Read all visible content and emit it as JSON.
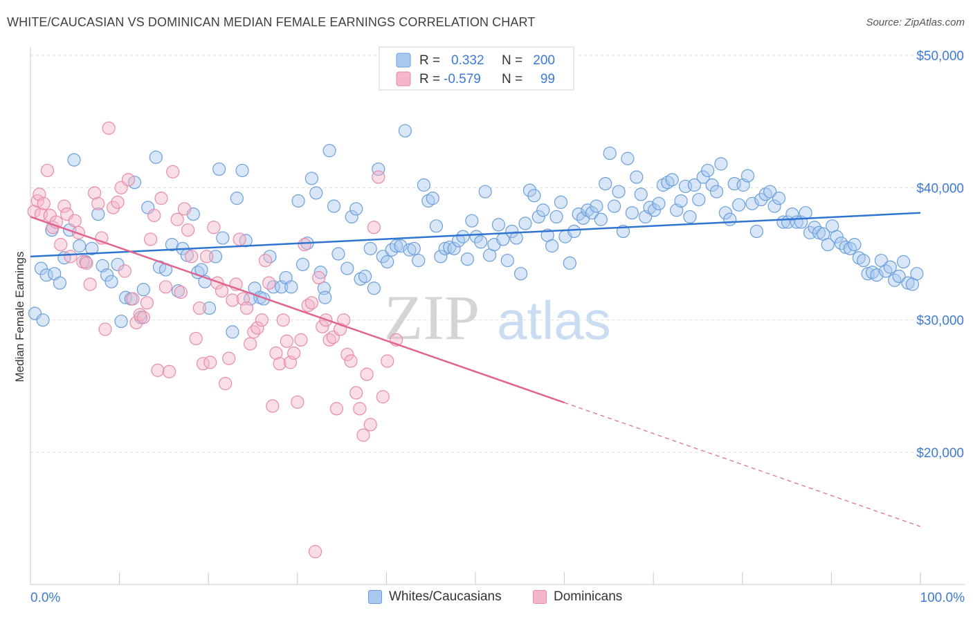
{
  "title": "WHITE/CAUCASIAN VS DOMINICAN MEDIAN FEMALE EARNINGS CORRELATION CHART",
  "source": "Source: ZipAtlas.com",
  "watermark": {
    "zip": "ZIP",
    "atlas": "atlas"
  },
  "colors": {
    "white_fill": "#a9c8ee",
    "white_stroke": "#6a9fdc",
    "white_line": "#2f74d0",
    "dom_fill": "#f4b6c8",
    "dom_stroke": "#e98aa7",
    "dom_line": "#e0648f",
    "axis_text": "#3d7ad6",
    "grid": "#dddddd"
  },
  "legend_top": {
    "rows": [
      {
        "r_label": "R =",
        "r_value": "0.332",
        "n_label": "N =",
        "n_value": "200"
      },
      {
        "r_label": "R =",
        "r_value": "-0.579",
        "n_label": "N =",
        "n_value": "99"
      }
    ]
  },
  "legend_bottom": [
    "Whites/Caucasians",
    "Dominicans"
  ],
  "chart_data": {
    "type": "scatter",
    "title": "WHITE/CAUCASIAN VS DOMINICAN MEDIAN FEMALE EARNINGS CORRELATION CHART",
    "xlabel": "",
    "ylabel": "Median Female Earnings",
    "x_tick_labels": [
      "0.0%",
      "100.0%"
    ],
    "y_tick_labels": [
      "$20,000",
      "$30,000",
      "$40,000",
      "$50,000"
    ],
    "y_ticks": [
      20000,
      30000,
      40000,
      50000
    ],
    "xlim": [
      0,
      100
    ],
    "ylim": [
      10000,
      52000
    ],
    "grid": true,
    "series": [
      {
        "name": "Whites/Caucasians",
        "r": 0.332,
        "n": 200,
        "trend": {
          "x": [
            0,
            100
          ],
          "y": [
            34800,
            38100
          ],
          "dashed_from": null
        },
        "points": [
          [
            0.5,
            30500
          ],
          [
            1.2,
            33900
          ],
          [
            1.4,
            30000
          ],
          [
            1.8,
            33400
          ],
          [
            2.4,
            36800
          ],
          [
            2.7,
            33500
          ],
          [
            3.3,
            32800
          ],
          [
            3.8,
            34700
          ],
          [
            4.4,
            36800
          ],
          [
            4.9,
            42100
          ],
          [
            5.5,
            35600
          ],
          [
            6.2,
            34400
          ],
          [
            6.9,
            35400
          ],
          [
            7.6,
            38000
          ],
          [
            8.1,
            34100
          ],
          [
            8.6,
            33400
          ],
          [
            9.1,
            32900
          ],
          [
            9.8,
            34200
          ],
          [
            10.2,
            29900
          ],
          [
            10.7,
            31700
          ],
          [
            11.3,
            31600
          ],
          [
            11.7,
            40400
          ],
          [
            12.4,
            30200
          ],
          [
            12.7,
            32300
          ],
          [
            13.2,
            38500
          ],
          [
            14.1,
            42300
          ],
          [
            14.5,
            34000
          ],
          [
            15.2,
            33800
          ],
          [
            15.9,
            35700
          ],
          [
            16.6,
            32200
          ],
          [
            17.1,
            35400
          ],
          [
            17.6,
            34900
          ],
          [
            18.3,
            38000
          ],
          [
            18.8,
            33600
          ],
          [
            19.2,
            33800
          ],
          [
            19.6,
            32900
          ],
          [
            20.1,
            30900
          ],
          [
            20.8,
            34800
          ],
          [
            21.2,
            41400
          ],
          [
            21.6,
            36200
          ],
          [
            22.7,
            29100
          ],
          [
            23.2,
            39200
          ],
          [
            23.8,
            41300
          ],
          [
            24.2,
            36000
          ],
          [
            24.7,
            31600
          ],
          [
            25.2,
            32400
          ],
          [
            25.8,
            31700
          ],
          [
            26.2,
            31600
          ],
          [
            26.9,
            34800
          ],
          [
            27.3,
            32500
          ],
          [
            28.2,
            32500
          ],
          [
            28.7,
            33200
          ],
          [
            29.3,
            32500
          ],
          [
            30.1,
            39000
          ],
          [
            30.6,
            34200
          ],
          [
            31.1,
            35800
          ],
          [
            31.6,
            40700
          ],
          [
            32.1,
            39600
          ],
          [
            32.6,
            33600
          ],
          [
            33.0,
            32400
          ],
          [
            33.1,
            31700
          ],
          [
            33.6,
            42800
          ],
          [
            34.1,
            38600
          ],
          [
            34.6,
            35000
          ],
          [
            35.6,
            33900
          ],
          [
            36.1,
            37800
          ],
          [
            36.6,
            38400
          ],
          [
            37.1,
            33100
          ],
          [
            37.6,
            33300
          ],
          [
            38.2,
            35400
          ],
          [
            38.6,
            32400
          ],
          [
            39.1,
            41400
          ],
          [
            39.6,
            34800
          ],
          [
            40.1,
            34400
          ],
          [
            40.6,
            35300
          ],
          [
            41.1,
            35600
          ],
          [
            41.6,
            35600
          ],
          [
            42.1,
            44300
          ],
          [
            42.6,
            35300
          ],
          [
            43.1,
            35400
          ],
          [
            43.6,
            34500
          ],
          [
            44.2,
            40200
          ],
          [
            44.7,
            39000
          ],
          [
            45.2,
            39200
          ],
          [
            45.6,
            37100
          ],
          [
            46.1,
            34800
          ],
          [
            46.6,
            35400
          ],
          [
            47.1,
            35500
          ],
          [
            47.6,
            35400
          ],
          [
            48.1,
            36000
          ],
          [
            48.6,
            36300
          ],
          [
            49.1,
            34600
          ],
          [
            49.6,
            37500
          ],
          [
            50.1,
            36300
          ],
          [
            50.6,
            35900
          ],
          [
            51.1,
            39700
          ],
          [
            51.6,
            34900
          ],
          [
            52.1,
            35700
          ],
          [
            52.6,
            37200
          ],
          [
            53.1,
            36100
          ],
          [
            53.6,
            34500
          ],
          [
            54.1,
            36700
          ],
          [
            54.6,
            36200
          ],
          [
            55.1,
            33500
          ],
          [
            55.6,
            37300
          ],
          [
            56.1,
            39800
          ],
          [
            56.6,
            39400
          ],
          [
            57.1,
            37800
          ],
          [
            57.6,
            38300
          ],
          [
            58.1,
            36400
          ],
          [
            58.6,
            35600
          ],
          [
            59.1,
            37800
          ],
          [
            59.6,
            38900
          ],
          [
            60.1,
            36300
          ],
          [
            60.6,
            34300
          ],
          [
            61.1,
            36700
          ],
          [
            61.6,
            38000
          ],
          [
            62.1,
            37700
          ],
          [
            62.6,
            38300
          ],
          [
            63.1,
            38100
          ],
          [
            63.6,
            38600
          ],
          [
            64.1,
            37600
          ],
          [
            64.6,
            40300
          ],
          [
            65.1,
            42600
          ],
          [
            65.6,
            38600
          ],
          [
            66.1,
            39700
          ],
          [
            66.6,
            36700
          ],
          [
            67.1,
            42200
          ],
          [
            67.6,
            38100
          ],
          [
            68.1,
            40800
          ],
          [
            68.6,
            39500
          ],
          [
            69.1,
            37800
          ],
          [
            69.6,
            38500
          ],
          [
            70.1,
            38300
          ],
          [
            70.6,
            38800
          ],
          [
            71.1,
            40200
          ],
          [
            71.6,
            40400
          ],
          [
            72.1,
            40600
          ],
          [
            72.6,
            38300
          ],
          [
            73.1,
            39000
          ],
          [
            73.6,
            40100
          ],
          [
            74.1,
            37800
          ],
          [
            74.6,
            40200
          ],
          [
            75.1,
            39100
          ],
          [
            75.6,
            40800
          ],
          [
            76.1,
            41300
          ],
          [
            76.6,
            40200
          ],
          [
            77.1,
            39700
          ],
          [
            77.6,
            41800
          ],
          [
            78.1,
            38100
          ],
          [
            78.6,
            37600
          ],
          [
            79.1,
            40300
          ],
          [
            79.6,
            38700
          ],
          [
            80.1,
            40200
          ],
          [
            80.6,
            40900
          ],
          [
            81.1,
            38800
          ],
          [
            81.6,
            36700
          ],
          [
            82.1,
            39100
          ],
          [
            82.6,
            39500
          ],
          [
            83.1,
            39700
          ],
          [
            83.6,
            38600
          ],
          [
            84.1,
            39200
          ],
          [
            84.6,
            37400
          ],
          [
            85.1,
            37400
          ],
          [
            85.6,
            38000
          ],
          [
            86.1,
            37400
          ],
          [
            86.6,
            37400
          ],
          [
            87.1,
            38100
          ],
          [
            87.6,
            36600
          ],
          [
            88.1,
            37000
          ],
          [
            88.6,
            36600
          ],
          [
            89.1,
            36500
          ],
          [
            89.6,
            35700
          ],
          [
            90.1,
            37100
          ],
          [
            90.6,
            36300
          ],
          [
            91.1,
            35800
          ],
          [
            91.6,
            35500
          ],
          [
            92.1,
            35400
          ],
          [
            92.6,
            35700
          ],
          [
            93.1,
            34700
          ],
          [
            93.6,
            34500
          ],
          [
            94.1,
            33500
          ],
          [
            94.6,
            33600
          ],
          [
            95.1,
            33400
          ],
          [
            95.6,
            34500
          ],
          [
            96.1,
            33700
          ],
          [
            96.6,
            34000
          ],
          [
            97.1,
            33000
          ],
          [
            97.6,
            33300
          ],
          [
            98.1,
            34400
          ],
          [
            98.6,
            32800
          ],
          [
            99.1,
            32700
          ],
          [
            99.6,
            33500
          ]
        ]
      },
      {
        "name": "Dominicans",
        "r": -0.579,
        "n": 99,
        "trend": {
          "x": [
            0,
            100
          ],
          "y": [
            37800,
            14400
          ],
          "dashed_from": 60
        },
        "points": [
          [
            0.4,
            38200
          ],
          [
            0.8,
            39000
          ],
          [
            1.0,
            39500
          ],
          [
            1.2,
            38000
          ],
          [
            1.5,
            38800
          ],
          [
            1.9,
            41300
          ],
          [
            2.2,
            37900
          ],
          [
            2.5,
            37000
          ],
          [
            2.9,
            37400
          ],
          [
            3.4,
            35700
          ],
          [
            3.8,
            38600
          ],
          [
            4.1,
            38000
          ],
          [
            4.5,
            34800
          ],
          [
            5.0,
            37500
          ],
          [
            5.4,
            36600
          ],
          [
            5.9,
            34400
          ],
          [
            6.3,
            34300
          ],
          [
            6.7,
            32700
          ],
          [
            7.2,
            39600
          ],
          [
            7.6,
            38800
          ],
          [
            8.0,
            36200
          ],
          [
            8.4,
            29300
          ],
          [
            8.8,
            44500
          ],
          [
            9.3,
            38500
          ],
          [
            9.8,
            38900
          ],
          [
            10.2,
            40000
          ],
          [
            10.6,
            33700
          ],
          [
            11.0,
            40600
          ],
          [
            11.5,
            31600
          ],
          [
            11.9,
            29800
          ],
          [
            12.3,
            30400
          ],
          [
            12.7,
            30200
          ],
          [
            13.1,
            31300
          ],
          [
            13.5,
            36100
          ],
          [
            13.9,
            37900
          ],
          [
            14.3,
            26200
          ],
          [
            14.7,
            39200
          ],
          [
            15.2,
            32500
          ],
          [
            15.6,
            26100
          ],
          [
            16.0,
            41200
          ],
          [
            16.5,
            37600
          ],
          [
            16.9,
            32100
          ],
          [
            17.3,
            38400
          ],
          [
            17.7,
            36800
          ],
          [
            18.1,
            34800
          ],
          [
            18.6,
            28600
          ],
          [
            19.0,
            30900
          ],
          [
            19.4,
            26700
          ],
          [
            19.8,
            34800
          ],
          [
            20.2,
            26800
          ],
          [
            20.6,
            37000
          ],
          [
            21.0,
            32800
          ],
          [
            21.5,
            32200
          ],
          [
            21.9,
            25200
          ],
          [
            22.3,
            27100
          ],
          [
            22.7,
            31500
          ],
          [
            23.1,
            32700
          ],
          [
            23.5,
            36100
          ],
          [
            23.9,
            31600
          ],
          [
            24.3,
            30900
          ],
          [
            24.7,
            28200
          ],
          [
            25.1,
            29100
          ],
          [
            25.5,
            29400
          ],
          [
            26.0,
            30000
          ],
          [
            26.4,
            34500
          ],
          [
            26.8,
            32800
          ],
          [
            27.2,
            23500
          ],
          [
            27.6,
            27500
          ],
          [
            28.0,
            26700
          ],
          [
            28.4,
            30000
          ],
          [
            28.8,
            28400
          ],
          [
            29.2,
            26800
          ],
          [
            29.6,
            27500
          ],
          [
            30.0,
            23800
          ],
          [
            30.4,
            28500
          ],
          [
            30.8,
            35700
          ],
          [
            31.2,
            31100
          ],
          [
            31.6,
            31300
          ],
          [
            32.0,
            12500
          ],
          [
            32.4,
            33200
          ],
          [
            32.8,
            29500
          ],
          [
            33.2,
            30000
          ],
          [
            33.6,
            28500
          ],
          [
            34.0,
            28700
          ],
          [
            34.4,
            23300
          ],
          [
            34.8,
            29300
          ],
          [
            35.2,
            30000
          ],
          [
            35.6,
            27400
          ],
          [
            36.0,
            26900
          ],
          [
            36.6,
            24500
          ],
          [
            37.0,
            23300
          ],
          [
            37.4,
            21300
          ],
          [
            37.8,
            25900
          ],
          [
            38.2,
            22100
          ],
          [
            38.6,
            37000
          ],
          [
            39.1,
            40800
          ],
          [
            39.6,
            24200
          ],
          [
            40.1,
            26900
          ],
          [
            41.1,
            28500
          ]
        ]
      }
    ]
  }
}
